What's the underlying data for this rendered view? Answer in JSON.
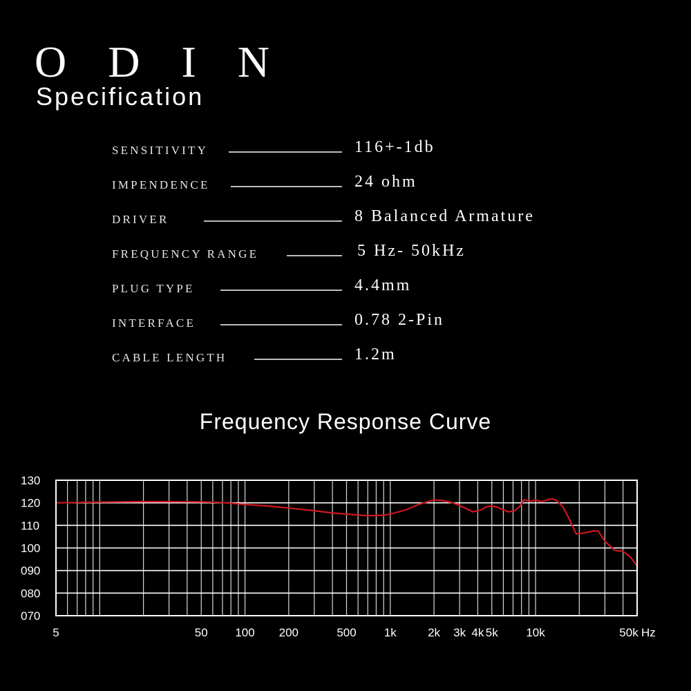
{
  "header": {
    "brand": "O D I N",
    "subtitle": "Specification"
  },
  "specs": [
    {
      "label": "Sensitivity",
      "value": "116+-1db"
    },
    {
      "label": "Impendence",
      "value": "24 ohm"
    },
    {
      "label": "Driver",
      "value": "8 Balanced Armature"
    },
    {
      "label": "Frequency Range",
      "value": "5 Hz- 50kHz"
    },
    {
      "label": "Plug Type",
      "value": "4.4mm"
    },
    {
      "label": "Interface",
      "value": "0.78 2-Pin"
    },
    {
      "label": "Cable Length",
      "value": "1.2m"
    }
  ],
  "chart_data": {
    "type": "line",
    "title": "Frequency Response Curve",
    "x_scale": "log",
    "xlim": [
      5,
      50000
    ],
    "ylim": [
      70,
      130
    ],
    "x_ticks": [
      {
        "value": 5,
        "label": "5"
      },
      {
        "value": 50,
        "label": "50"
      },
      {
        "value": 100,
        "label": "100"
      },
      {
        "value": 200,
        "label": "200"
      },
      {
        "value": 500,
        "label": "500"
      },
      {
        "value": 1000,
        "label": "1k"
      },
      {
        "value": 2000,
        "label": "2k"
      },
      {
        "value": 3000,
        "label": "3k"
      },
      {
        "value": 4000,
        "label": "4k"
      },
      {
        "value": 5000,
        "label": "5k"
      },
      {
        "value": 10000,
        "label": "10k"
      },
      {
        "value": 50000,
        "label": "50k"
      }
    ],
    "x_unit": "Hz",
    "y_ticks": [
      {
        "value": 130,
        "label": "130"
      },
      {
        "value": 120,
        "label": "120"
      },
      {
        "value": 110,
        "label": "110"
      },
      {
        "value": 100,
        "label": "100"
      },
      {
        "value": 90,
        "label": "090"
      },
      {
        "value": 80,
        "label": "080"
      },
      {
        "value": 70,
        "label": "070"
      }
    ],
    "grid": true,
    "series": [
      {
        "color": "#d0161e",
        "x": [
          5,
          10,
          20,
          30,
          50,
          70,
          100,
          150,
          200,
          300,
          400,
          500,
          700,
          900,
          1000,
          1300,
          1600,
          2000,
          2300,
          2700,
          3200,
          3700,
          4200,
          4600,
          5000,
          5400,
          5800,
          6500,
          7200,
          7800,
          8300,
          8800,
          9300,
          10000,
          11000,
          12000,
          13000,
          14000,
          15500,
          17000,
          19000,
          21000,
          23000,
          25000,
          27000,
          30000,
          35000,
          40000,
          45000,
          50000
        ],
        "values": [
          120,
          120.3,
          120.5,
          120.5,
          120.4,
          120.1,
          119.3,
          118.5,
          117.7,
          116.5,
          115.5,
          115,
          114.3,
          114.5,
          115,
          117,
          119.5,
          121.3,
          121,
          120,
          118,
          116,
          116.8,
          118.3,
          118.5,
          118.2,
          117.3,
          116,
          116.5,
          118.5,
          121.3,
          121,
          120.8,
          121.2,
          120.5,
          121.3,
          121.8,
          121,
          118,
          113,
          106.3,
          106.5,
          107,
          107.5,
          107.5,
          103,
          99,
          98.5,
          96,
          92
        ]
      }
    ]
  }
}
